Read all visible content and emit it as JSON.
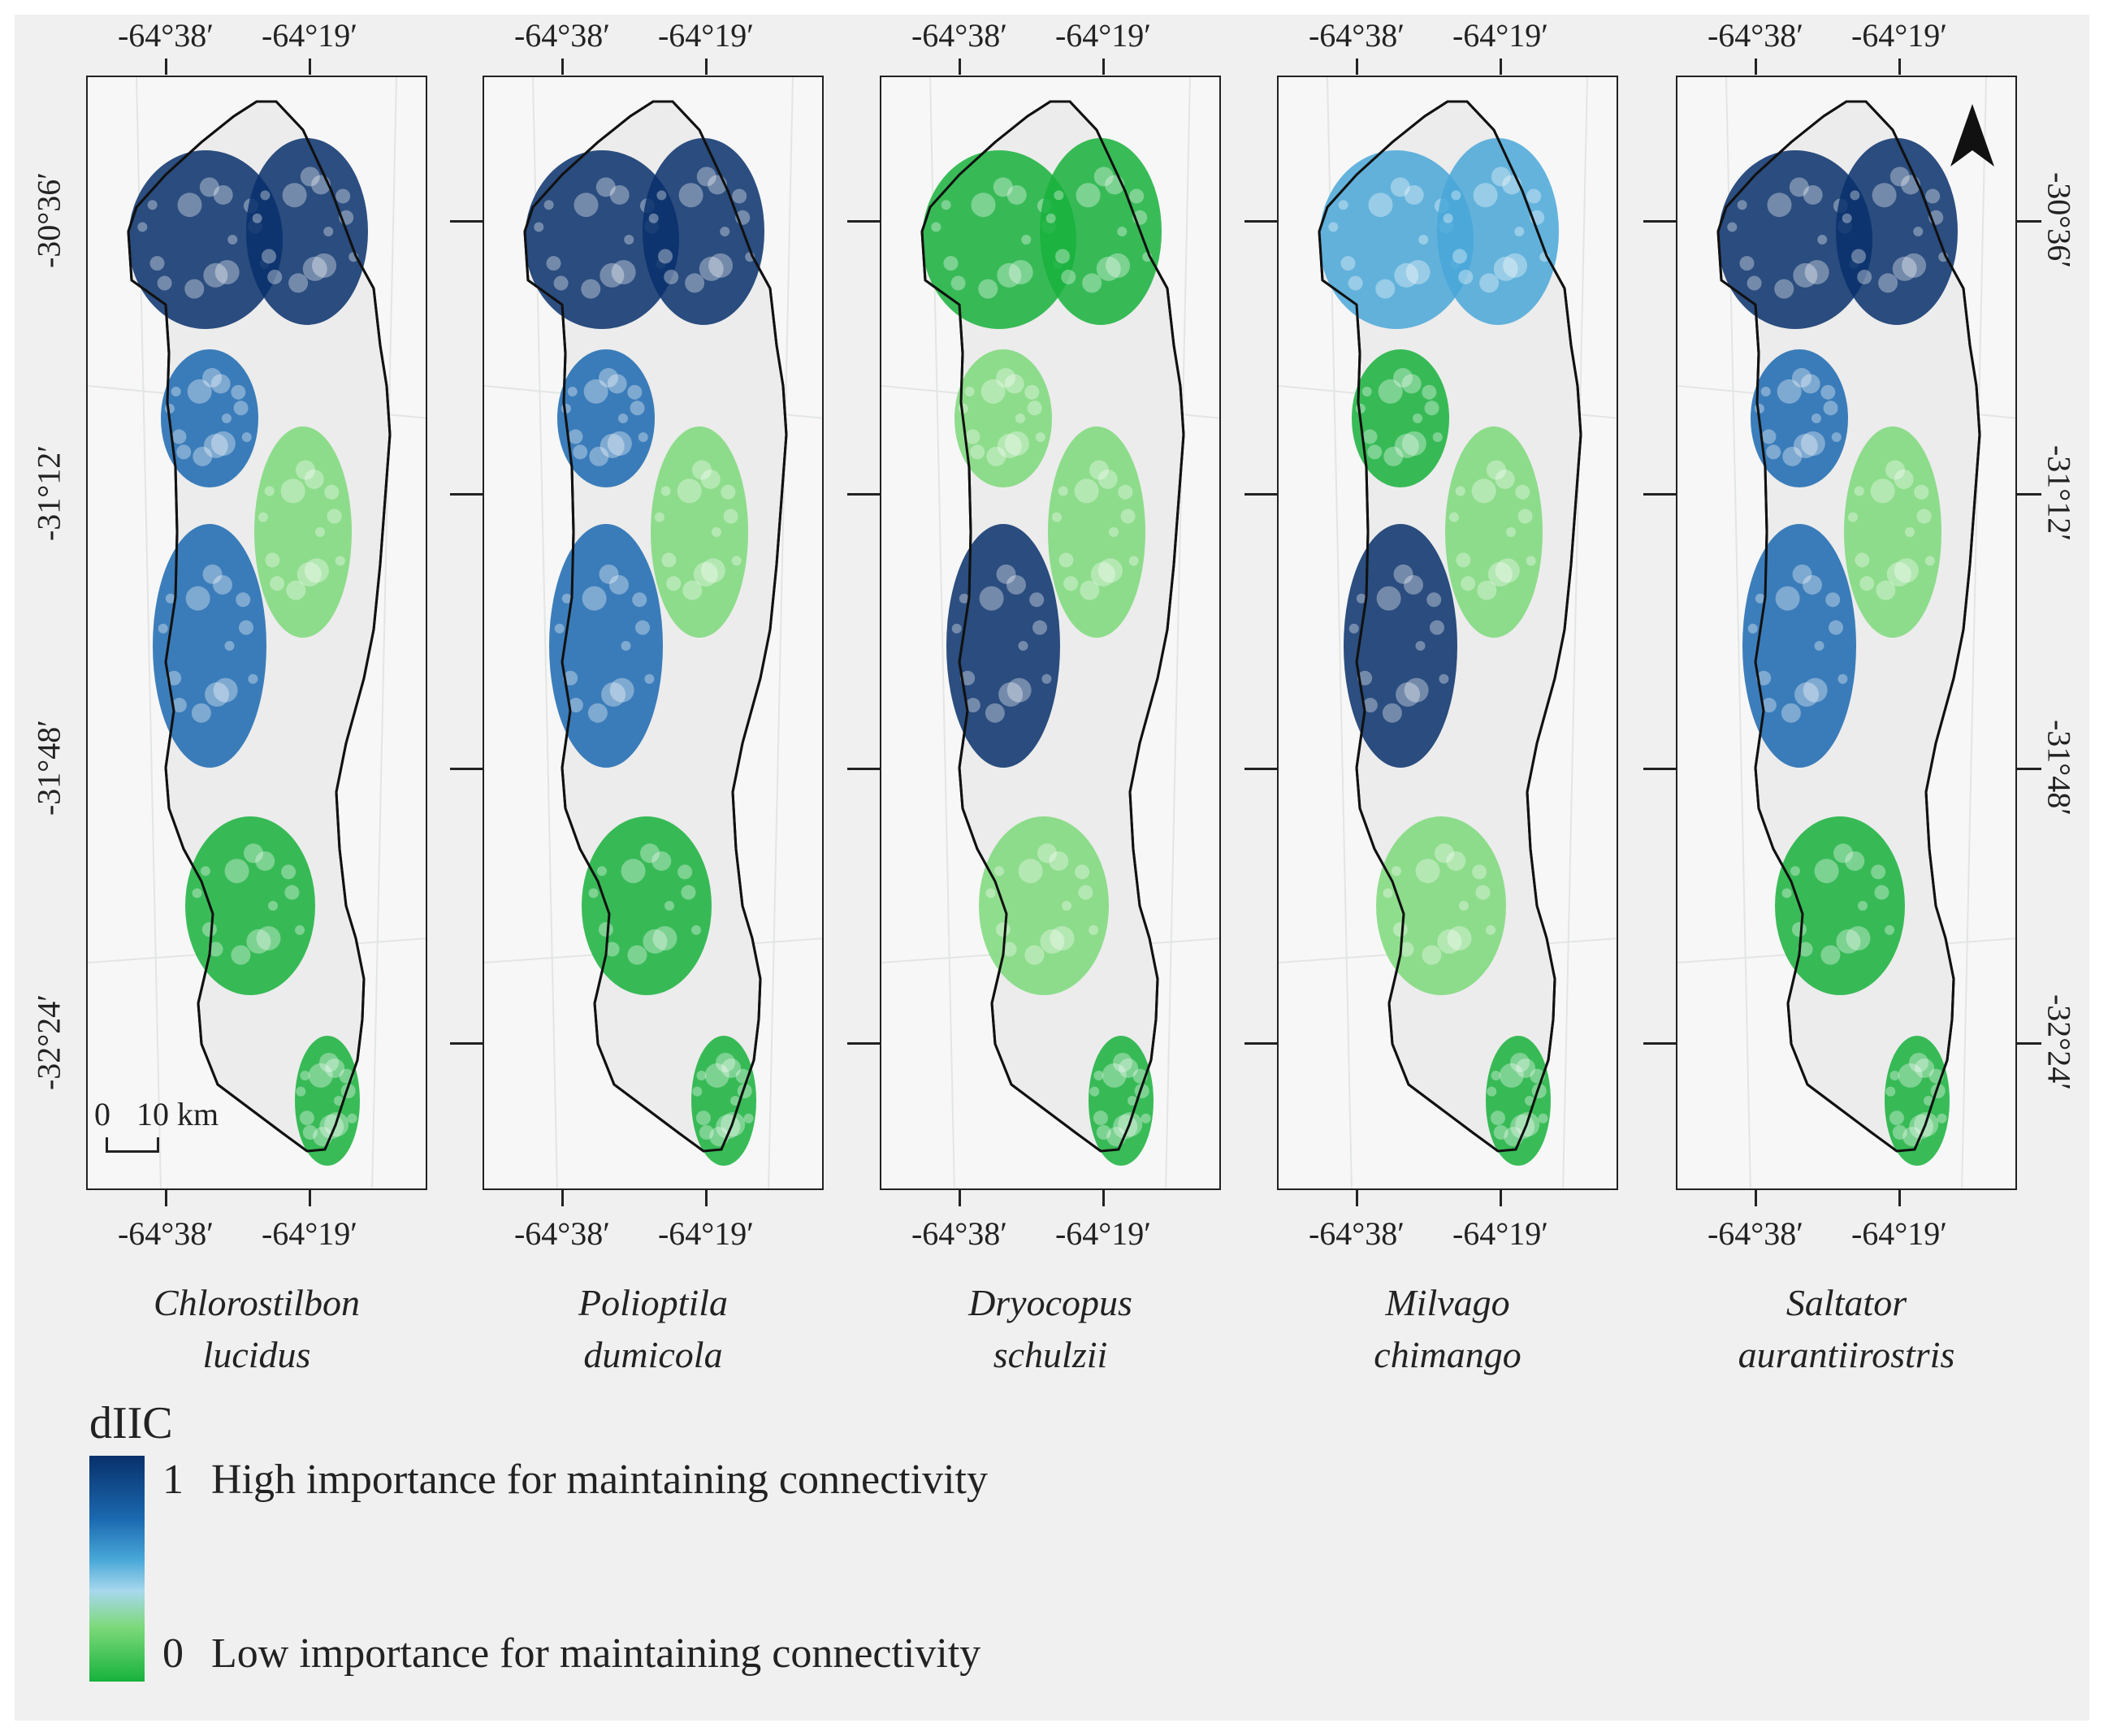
{
  "panels": [
    {
      "species_line1": "Chlorostilbon",
      "species_line2": "lucidus",
      "palette": [
        "#08306b",
        "#08306b",
        "#1b69b0",
        "#1b69b0",
        "#7cd97a",
        "#17b23c",
        "#17b23c"
      ]
    },
    {
      "species_line1": "Polioptila",
      "species_line2": "dumicola",
      "palette": [
        "#08306b",
        "#08306b",
        "#1b69b0",
        "#1b69b0",
        "#7cd97a",
        "#17b23c",
        "#17b23c"
      ]
    },
    {
      "species_line1": "Dryocopus",
      "species_line2": "schulzii",
      "palette": [
        "#17b23c",
        "#17b23c",
        "#7cd97a",
        "#08306b",
        "#7cd97a",
        "#7cd97a",
        "#17b23c"
      ]
    },
    {
      "species_line1": "Milvago",
      "species_line2": "chimango",
      "palette": [
        "#49a7d8",
        "#49a7d8",
        "#17b23c",
        "#08306b",
        "#7cd97a",
        "#7cd97a",
        "#17b23c"
      ]
    },
    {
      "species_line1": "Saltator",
      "species_line2": "aurantiirostris",
      "palette": [
        "#08306b",
        "#08306b",
        "#1b69b0",
        "#1b69b0",
        "#7cd97a",
        "#17b23c",
        "#17b23c"
      ]
    }
  ],
  "axes": {
    "lon_ticks": [
      "-64°38′",
      "-64°19′"
    ],
    "lat_ticks": [
      "-30°36′",
      "-31°12′",
      "-31°48′",
      "-32°24′"
    ]
  },
  "scale_bar": {
    "zero": "0",
    "length": "10 km"
  },
  "north_arrow": "north-arrow-icon",
  "legend": {
    "title": "dIIC",
    "high_value": "1",
    "high_label": "High importance for maintaining connectivity",
    "low_value": "0",
    "low_label": "Low importance for maintaining connectivity",
    "colors": [
      "#08306b",
      "#1b69b0",
      "#49a7d8",
      "#a8d8ec",
      "#7cd97a",
      "#17b23c"
    ]
  }
}
